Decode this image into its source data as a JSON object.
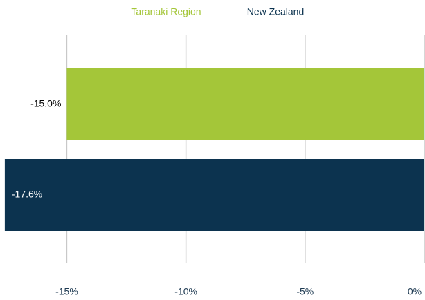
{
  "chart_data": {
    "type": "bar",
    "orientation": "horizontal",
    "categories": [
      null
    ],
    "series": [
      {
        "name": "Taranaki Region",
        "color": "#a4c639",
        "values": [
          -15.0
        ],
        "value_labels": [
          "-15.0%"
        ]
      },
      {
        "name": "New Zealand",
        "color": "#0c334f",
        "values": [
          -17.6
        ],
        "value_labels": [
          "-17.6%"
        ]
      }
    ],
    "xlim": [
      -17.8,
      0
    ],
    "xticks": [
      {
        "value": -15,
        "label": "-15%"
      },
      {
        "value": -10,
        "label": "-10%"
      },
      {
        "value": -5,
        "label": "-5%"
      },
      {
        "value": 0,
        "label": "0%"
      }
    ],
    "grid": true,
    "legend": "top"
  }
}
